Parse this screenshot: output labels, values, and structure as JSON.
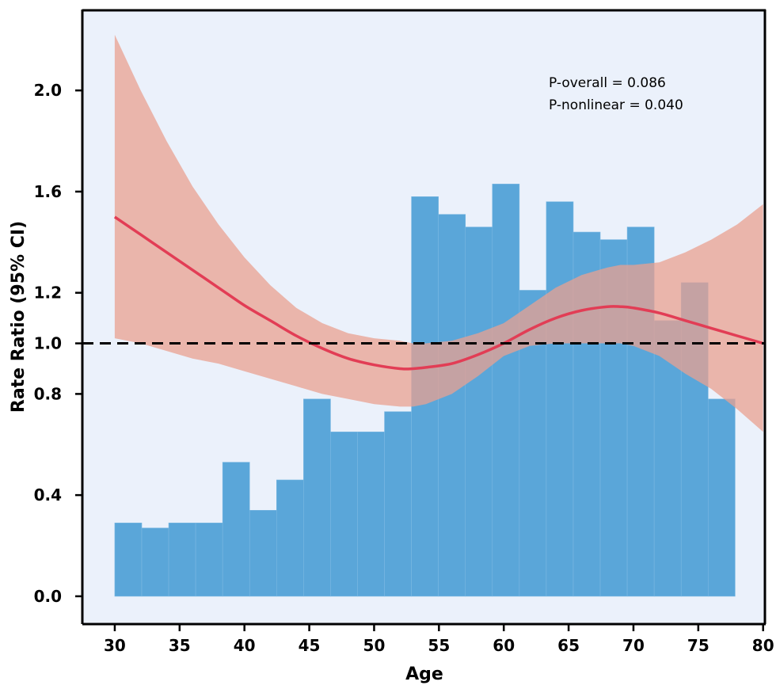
{
  "chart_data": {
    "type": "bar",
    "xlabel": "Age",
    "ylabel": "Rate Ratio (95% CI)",
    "xlim": [
      27.5,
      80.2
    ],
    "ylim": [
      -0.11,
      2.32
    ],
    "x_ticks": [
      30,
      35,
      40,
      45,
      50,
      55,
      60,
      65,
      70,
      75,
      80
    ],
    "y_ticks": [
      0.0,
      0.4,
      0.8,
      1.0,
      1.2,
      1.6,
      2.0
    ],
    "y_tick_labels": [
      "0.0",
      "0.4",
      "0.8",
      "1.0",
      "1.2",
      "1.6",
      "2.0"
    ],
    "reference_line": {
      "y": 1.0,
      "style": "dashed"
    },
    "annotations": [
      "P-overall = 0.086",
      "P-nonlinear = 0.040"
    ],
    "histogram": {
      "bin_start": 30,
      "bin_width": 2.08,
      "values": [
        0.29,
        0.27,
        0.29,
        0.29,
        0.53,
        0.34,
        0.46,
        0.78,
        0.65,
        0.65,
        0.73,
        1.58,
        1.51,
        1.46,
        1.63,
        1.21,
        1.56,
        1.44,
        1.41,
        1.46,
        1.09,
        1.24,
        0.78
      ],
      "color": "#5aa6d9"
    },
    "curve": {
      "x": [
        30,
        32,
        34,
        36,
        38,
        40,
        42,
        44,
        46,
        48,
        50,
        52,
        53,
        54,
        56,
        58,
        60,
        62,
        64,
        66,
        68,
        69,
        70,
        72,
        74,
        76,
        78,
        80
      ],
      "y": [
        1.5,
        1.43,
        1.36,
        1.29,
        1.22,
        1.15,
        1.09,
        1.03,
        0.98,
        0.94,
        0.915,
        0.9,
        0.9,
        0.905,
        0.92,
        0.955,
        1.0,
        1.055,
        1.1,
        1.13,
        1.145,
        1.145,
        1.14,
        1.12,
        1.09,
        1.06,
        1.03,
        1.0
      ],
      "lower": [
        1.02,
        1.0,
        0.97,
        0.94,
        0.92,
        0.89,
        0.86,
        0.83,
        0.8,
        0.78,
        0.76,
        0.75,
        0.75,
        0.76,
        0.8,
        0.87,
        0.95,
        0.99,
        1.0,
        1.0,
        1.0,
        1.0,
        0.99,
        0.95,
        0.88,
        0.82,
        0.74,
        0.65
      ],
      "upper": [
        2.22,
        2.0,
        1.8,
        1.62,
        1.47,
        1.34,
        1.23,
        1.14,
        1.08,
        1.04,
        1.02,
        1.01,
        1.0,
        1.0,
        1.01,
        1.04,
        1.08,
        1.15,
        1.22,
        1.27,
        1.3,
        1.31,
        1.31,
        1.32,
        1.36,
        1.41,
        1.47,
        1.55
      ],
      "line_color": "#e23d55",
      "band_color": "#e9a090"
    },
    "background": "#ebf1fb",
    "grid": false
  }
}
